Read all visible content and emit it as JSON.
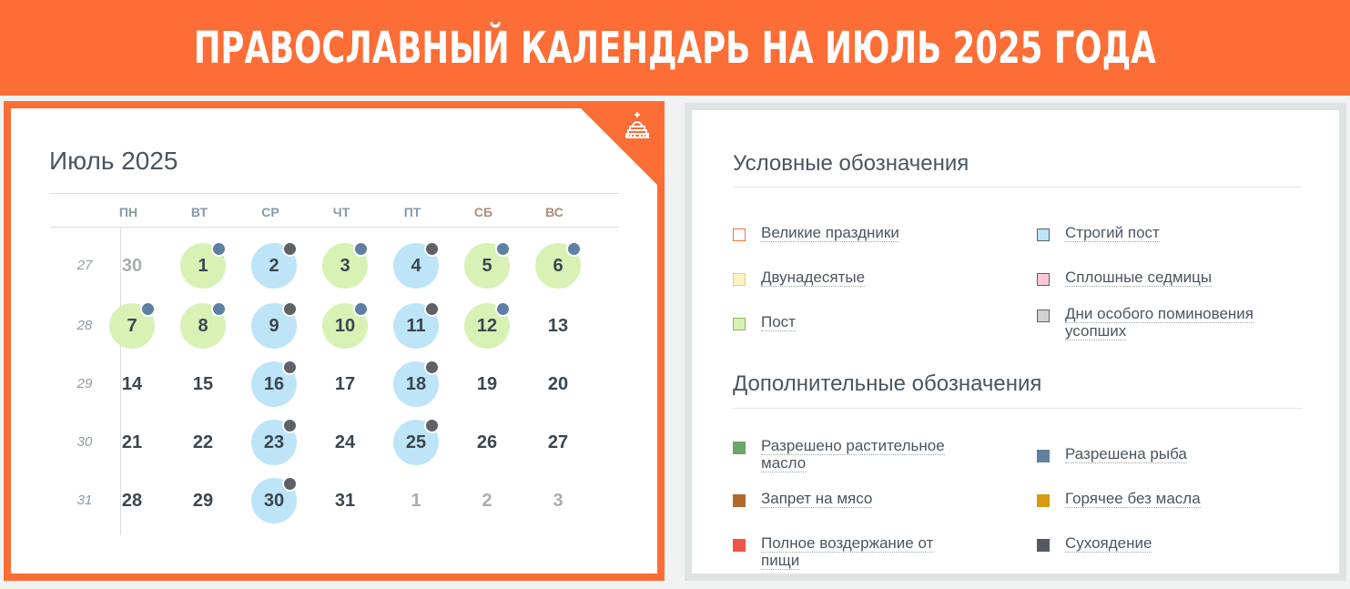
{
  "banner": {
    "title": "ПРАВОСЛАВНЫЙ КАЛЕНДАРЬ НА ИЮЛЬ 2025 ГОДА"
  },
  "calendar": {
    "title": "Июль 2025",
    "weekdays": [
      "ПН",
      "ВТ",
      "СР",
      "ЧТ",
      "ПТ",
      "СБ",
      "ВС"
    ],
    "weeks": [
      "27",
      "28",
      "29",
      "30",
      "31"
    ],
    "days": [
      [
        {
          "n": "30",
          "other": true
        },
        {
          "n": "1",
          "fill": "green",
          "dot": "fish"
        },
        {
          "n": "2",
          "fill": "blue",
          "dot": "dry"
        },
        {
          "n": "3",
          "fill": "green",
          "dot": "fish"
        },
        {
          "n": "4",
          "fill": "blue",
          "dot": "dry"
        },
        {
          "n": "5",
          "fill": "green",
          "dot": "fish"
        },
        {
          "n": "6",
          "fill": "green",
          "dot": "fish"
        }
      ],
      [
        {
          "n": "7",
          "fill": "green",
          "dot": "fish"
        },
        {
          "n": "8",
          "fill": "green",
          "dot": "fish"
        },
        {
          "n": "9",
          "fill": "blue",
          "dot": "dry"
        },
        {
          "n": "10",
          "fill": "green",
          "dot": "fish"
        },
        {
          "n": "11",
          "fill": "blue",
          "dot": "dry"
        },
        {
          "n": "12",
          "fill": "green",
          "dot": "fish"
        },
        {
          "n": "13"
        }
      ],
      [
        {
          "n": "14"
        },
        {
          "n": "15"
        },
        {
          "n": "16",
          "fill": "blue",
          "dot": "dry"
        },
        {
          "n": "17"
        },
        {
          "n": "18",
          "fill": "blue",
          "dot": "dry"
        },
        {
          "n": "19"
        },
        {
          "n": "20"
        }
      ],
      [
        {
          "n": "21"
        },
        {
          "n": "22"
        },
        {
          "n": "23",
          "fill": "blue",
          "dot": "dry"
        },
        {
          "n": "24"
        },
        {
          "n": "25",
          "fill": "blue",
          "dot": "dry"
        },
        {
          "n": "26"
        },
        {
          "n": "27"
        }
      ],
      [
        {
          "n": "28"
        },
        {
          "n": "29"
        },
        {
          "n": "30",
          "fill": "blue",
          "dot": "dry"
        },
        {
          "n": "31"
        },
        {
          "n": "1",
          "other": true
        },
        {
          "n": "2",
          "other": true
        },
        {
          "n": "3",
          "other": true
        }
      ]
    ],
    "corner_icon": "church-icon"
  },
  "legend": {
    "heading": "Условные обозначения",
    "items": [
      {
        "label": "Великие праздники",
        "swatch": "#ffffff",
        "border": "#fd6d36"
      },
      {
        "label": "Строгий пост",
        "swatch": "#bde4f7",
        "border": "#5a6168"
      },
      {
        "label": "Двунадесятые",
        "swatch": "#fff3c4",
        "border": "#e3cf7c"
      },
      {
        "label": "Сплошные седмицы",
        "swatch": "#fbc6d6",
        "border": "#5a6168"
      },
      {
        "label": "Пост",
        "swatch": "#d7f2b4",
        "border": "#8fb567"
      },
      {
        "label": "Дни особого поминовения усопших",
        "swatch": "#d2d2d2",
        "border": "#5a6168"
      }
    ]
  },
  "extra": {
    "heading": "Дополнительные обозначения",
    "items": [
      {
        "label": "Разрешено растительное масло",
        "swatch": "#6aa56a"
      },
      {
        "label": "Разрешена рыба",
        "swatch": "#5f7fa3"
      },
      {
        "label": "Запрет на мясо",
        "swatch": "#b06b2c"
      },
      {
        "label": "Горячее без масла",
        "swatch": "#d99a12"
      },
      {
        "label": "Полное воздержание от пищи",
        "swatch": "#ee5546"
      },
      {
        "label": "Сухоядение",
        "swatch": "#555a60"
      }
    ]
  }
}
